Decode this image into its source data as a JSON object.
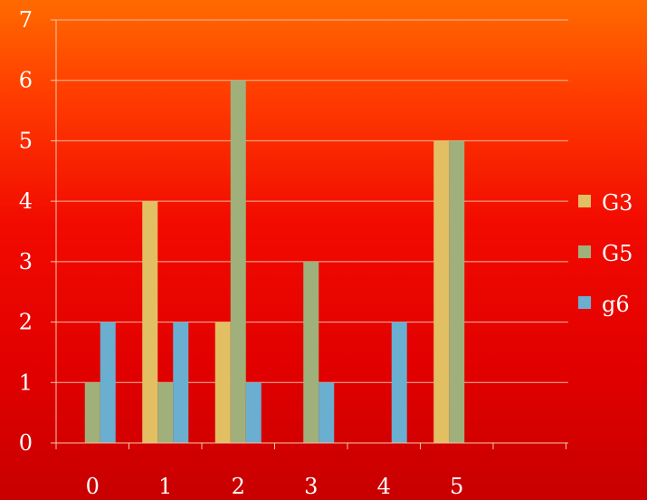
{
  "chart_data": {
    "type": "bar",
    "categories": [
      "0",
      "1",
      "2",
      "3",
      "4",
      "5"
    ],
    "series": [
      {
        "name": "G3",
        "color": "#e2bf63",
        "values": [
          0,
          4,
          2,
          0,
          0,
          5
        ]
      },
      {
        "name": "G5",
        "color": "#9fb07a",
        "values": [
          1,
          1,
          6,
          3,
          0,
          5
        ]
      },
      {
        "name": "g6",
        "color": "#6aaed0",
        "values": [
          2,
          2,
          1,
          1,
          2,
          0
        ]
      }
    ],
    "yticks": [
      "0",
      "1",
      "2",
      "3",
      "4",
      "5",
      "6",
      "7"
    ],
    "ylim": [
      0,
      7
    ],
    "grid": true,
    "legend_position": "right",
    "title": "",
    "xlabel": "",
    "ylabel": ""
  }
}
